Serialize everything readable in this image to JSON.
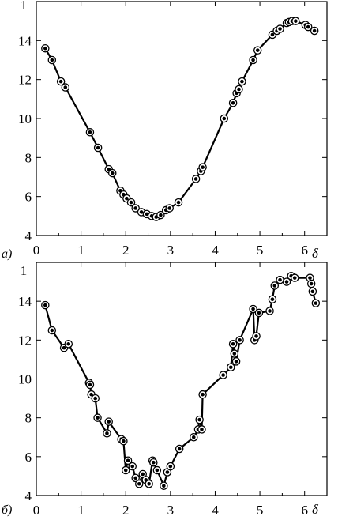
{
  "chart_data": [
    {
      "type": "line",
      "panel_label": "a)",
      "xlabel": "δ",
      "ylabel": "1",
      "xlim": [
        0,
        6.5
      ],
      "ylim": [
        4,
        16
      ],
      "x_ticks": [
        "0",
        "1",
        "2",
        "3",
        "4",
        "5",
        "6"
      ],
      "y_ticks": [
        "4",
        "6",
        "8",
        "10",
        "12",
        "14"
      ],
      "markers": "circle",
      "x": [
        0.2,
        0.35,
        0.55,
        0.65,
        1.2,
        1.38,
        1.62,
        1.7,
        1.88,
        1.95,
        2.02,
        2.12,
        2.22,
        2.35,
        2.47,
        2.58,
        2.68,
        2.78,
        2.9,
        2.98,
        3.18,
        3.57,
        3.68,
        3.72,
        4.2,
        4.4,
        4.48,
        4.53,
        4.6,
        4.85,
        4.95,
        5.28,
        5.38,
        5.45,
        5.6,
        5.65,
        5.72,
        5.8,
        6.02,
        6.08,
        6.22
      ],
      "y": [
        13.6,
        13.0,
        11.9,
        11.6,
        9.3,
        8.5,
        7.4,
        7.2,
        6.3,
        6.1,
        5.9,
        5.7,
        5.4,
        5.2,
        5.1,
        5.0,
        4.95,
        5.05,
        5.3,
        5.4,
        5.7,
        6.9,
        7.3,
        7.5,
        10.0,
        10.8,
        11.3,
        11.5,
        11.9,
        13.0,
        13.5,
        14.3,
        14.5,
        14.6,
        14.9,
        14.95,
        15.0,
        15.0,
        14.8,
        14.7,
        14.5
      ]
    },
    {
      "type": "line",
      "panel_label": "б)",
      "xlabel": "δ",
      "ylabel": "1",
      "xlim": [
        0,
        6.5
      ],
      "ylim": [
        4,
        16
      ],
      "x_ticks": [
        "0",
        "1",
        "2",
        "3",
        "4",
        "5",
        "6"
      ],
      "y_ticks": [
        "4",
        "6",
        "8",
        "10",
        "12",
        "14"
      ],
      "markers": "circle",
      "x": [
        0.2,
        0.35,
        0.62,
        0.72,
        1.18,
        1.2,
        1.23,
        1.32,
        1.37,
        1.58,
        1.62,
        1.9,
        1.95,
        2.0,
        2.05,
        2.15,
        2.22,
        2.3,
        2.38,
        2.45,
        2.52,
        2.6,
        2.62,
        2.7,
        2.85,
        2.93,
        3.0,
        3.2,
        3.52,
        3.62,
        3.65,
        3.7,
        3.72,
        4.18,
        4.35,
        4.4,
        4.43,
        4.47,
        4.55,
        4.85,
        4.88,
        4.92,
        4.98,
        5.22,
        5.28,
        5.33,
        5.45,
        5.6,
        5.7,
        5.78,
        6.12,
        6.15,
        6.18,
        6.25
      ],
      "y": [
        13.8,
        12.5,
        11.6,
        11.8,
        9.8,
        9.7,
        9.2,
        9.0,
        8.0,
        7.2,
        7.8,
        6.9,
        6.8,
        5.3,
        5.8,
        5.5,
        4.9,
        4.6,
        5.1,
        4.8,
        4.6,
        5.8,
        5.7,
        5.3,
        4.5,
        5.2,
        5.5,
        6.4,
        7.0,
        7.4,
        7.9,
        7.4,
        9.2,
        10.2,
        10.6,
        11.8,
        11.3,
        10.9,
        12.0,
        13.6,
        12.0,
        12.2,
        13.4,
        13.5,
        14.1,
        14.8,
        15.1,
        15.0,
        15.3,
        15.2,
        15.2,
        14.9,
        14.5,
        13.9
      ]
    }
  ]
}
